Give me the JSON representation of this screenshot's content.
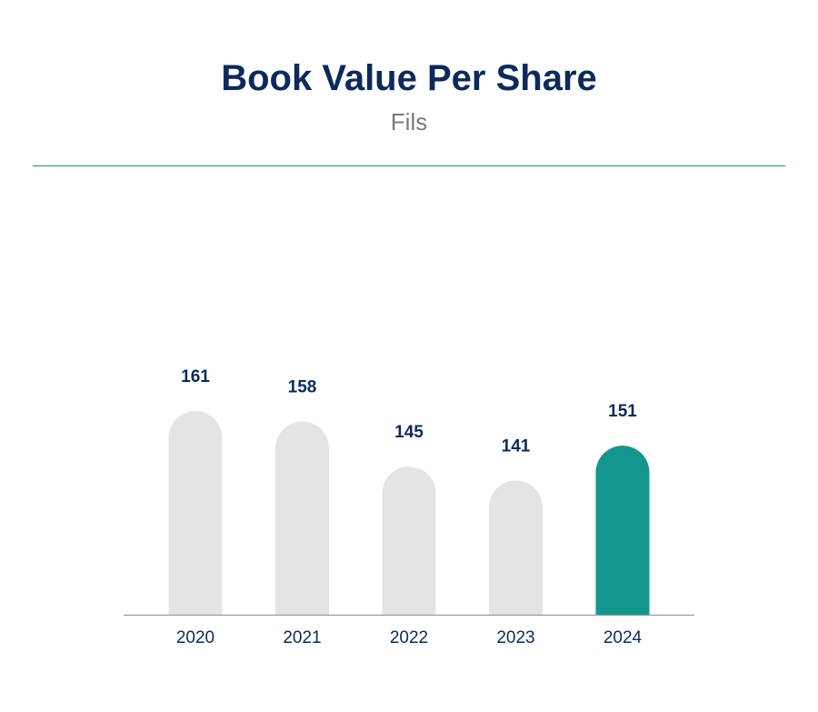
{
  "header": {
    "title": "Book Value Per Share",
    "subtitle": "Fils"
  },
  "colors": {
    "bar_default": "#e3e4e4",
    "bar_highlight": "#12968f",
    "text_dark": "#0c2a5b",
    "baseline": "#9a9a9a"
  },
  "chart_data": {
    "type": "bar",
    "categories": [
      "2020",
      "2021",
      "2022",
      "2023",
      "2024"
    ],
    "values": [
      161,
      158,
      145,
      141,
      151
    ],
    "title": "Book Value Per Share",
    "subtitle": "Fils",
    "xlabel": "",
    "ylabel": "",
    "highlight_index": 4,
    "grid": false,
    "legend": "none"
  }
}
